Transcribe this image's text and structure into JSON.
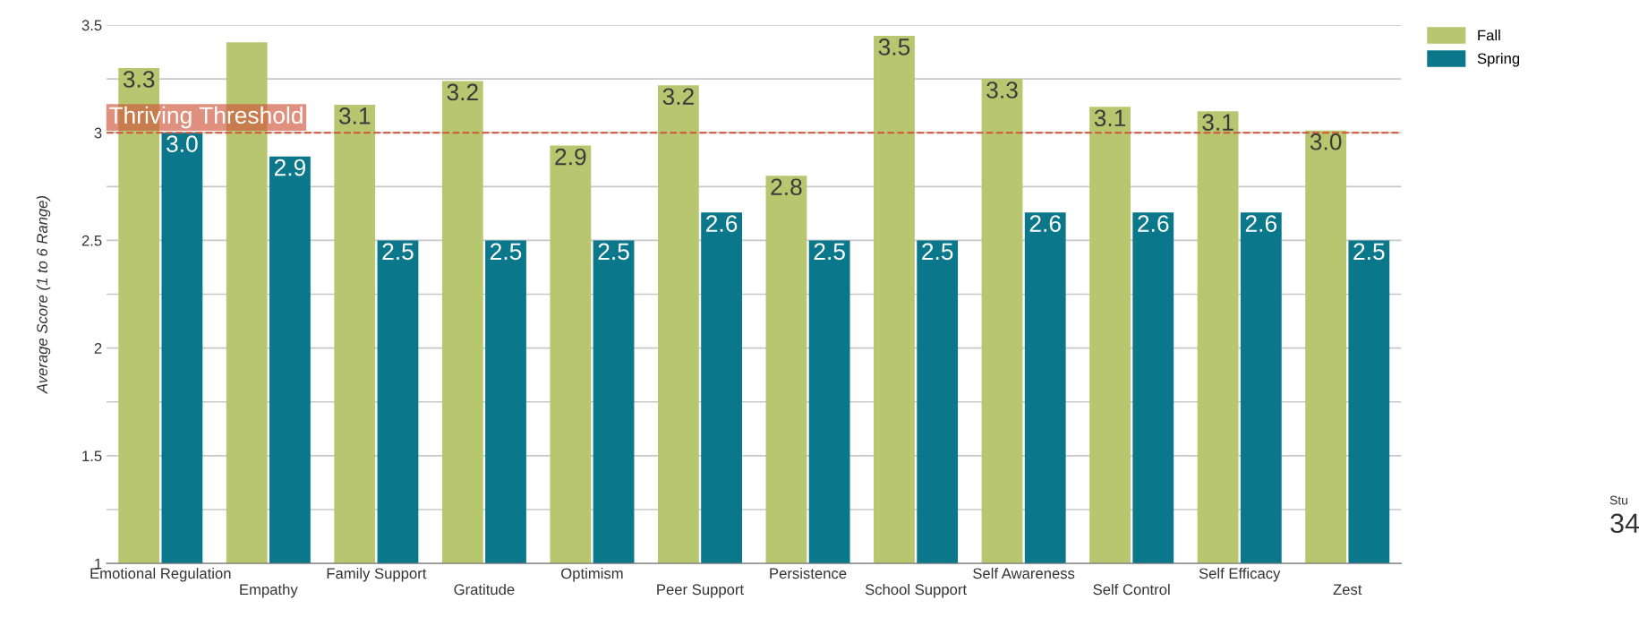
{
  "chart_data": {
    "type": "bar",
    "ylabel": "Average Score (1 to 6 Range)",
    "categories": [
      "Emotional Regulation",
      "Empathy",
      "Family Support",
      "Gratitude",
      "Optimism",
      "Peer Support",
      "Persistence",
      "School Support",
      "Self Awareness",
      "Self Control",
      "Self Efficacy",
      "Zest"
    ],
    "series": [
      {
        "name": "Fall",
        "color": "#b8c66f",
        "values": [
          3.3,
          3.42,
          3.13,
          3.24,
          2.94,
          3.22,
          2.8,
          3.45,
          3.25,
          3.12,
          3.1,
          3.01
        ],
        "value_labels": [
          "3.3",
          null,
          "3.1",
          "3.2",
          "2.9",
          "3.2",
          "2.8",
          "3.5",
          "3.3",
          "3.1",
          "3.1",
          "3.0"
        ]
      },
      {
        "name": "Spring",
        "color": "#0a788a",
        "values": [
          3.0,
          2.89,
          2.5,
          2.5,
          2.5,
          2.63,
          2.5,
          2.5,
          2.63,
          2.63,
          2.63,
          2.5
        ],
        "value_labels": [
          "3.0",
          "2.9",
          "2.5",
          "2.5",
          "2.5",
          "2.6",
          "2.5",
          "2.5",
          "2.6",
          "2.6",
          "2.6",
          "2.5"
        ]
      }
    ],
    "ylim": [
      1,
      3.5
    ],
    "yticks": [
      1,
      {
        "value": 1.25,
        "label": null
      },
      1.5,
      {
        "value": 1.75,
        "label": null
      },
      2,
      {
        "value": 2.25,
        "label": null
      },
      2.5,
      {
        "value": 2.75,
        "label": null
      },
      3,
      {
        "value": 3.25,
        "label": null
      },
      3.5
    ],
    "ref_lines": [
      {
        "axis": "y",
        "value": 3,
        "label": "Thriving Threshold",
        "color": "#d0553a",
        "line_style": "dashed"
      }
    ],
    "annotations": [
      "Stu",
      "34"
    ],
    "grid": "y",
    "legend": "top right"
  }
}
